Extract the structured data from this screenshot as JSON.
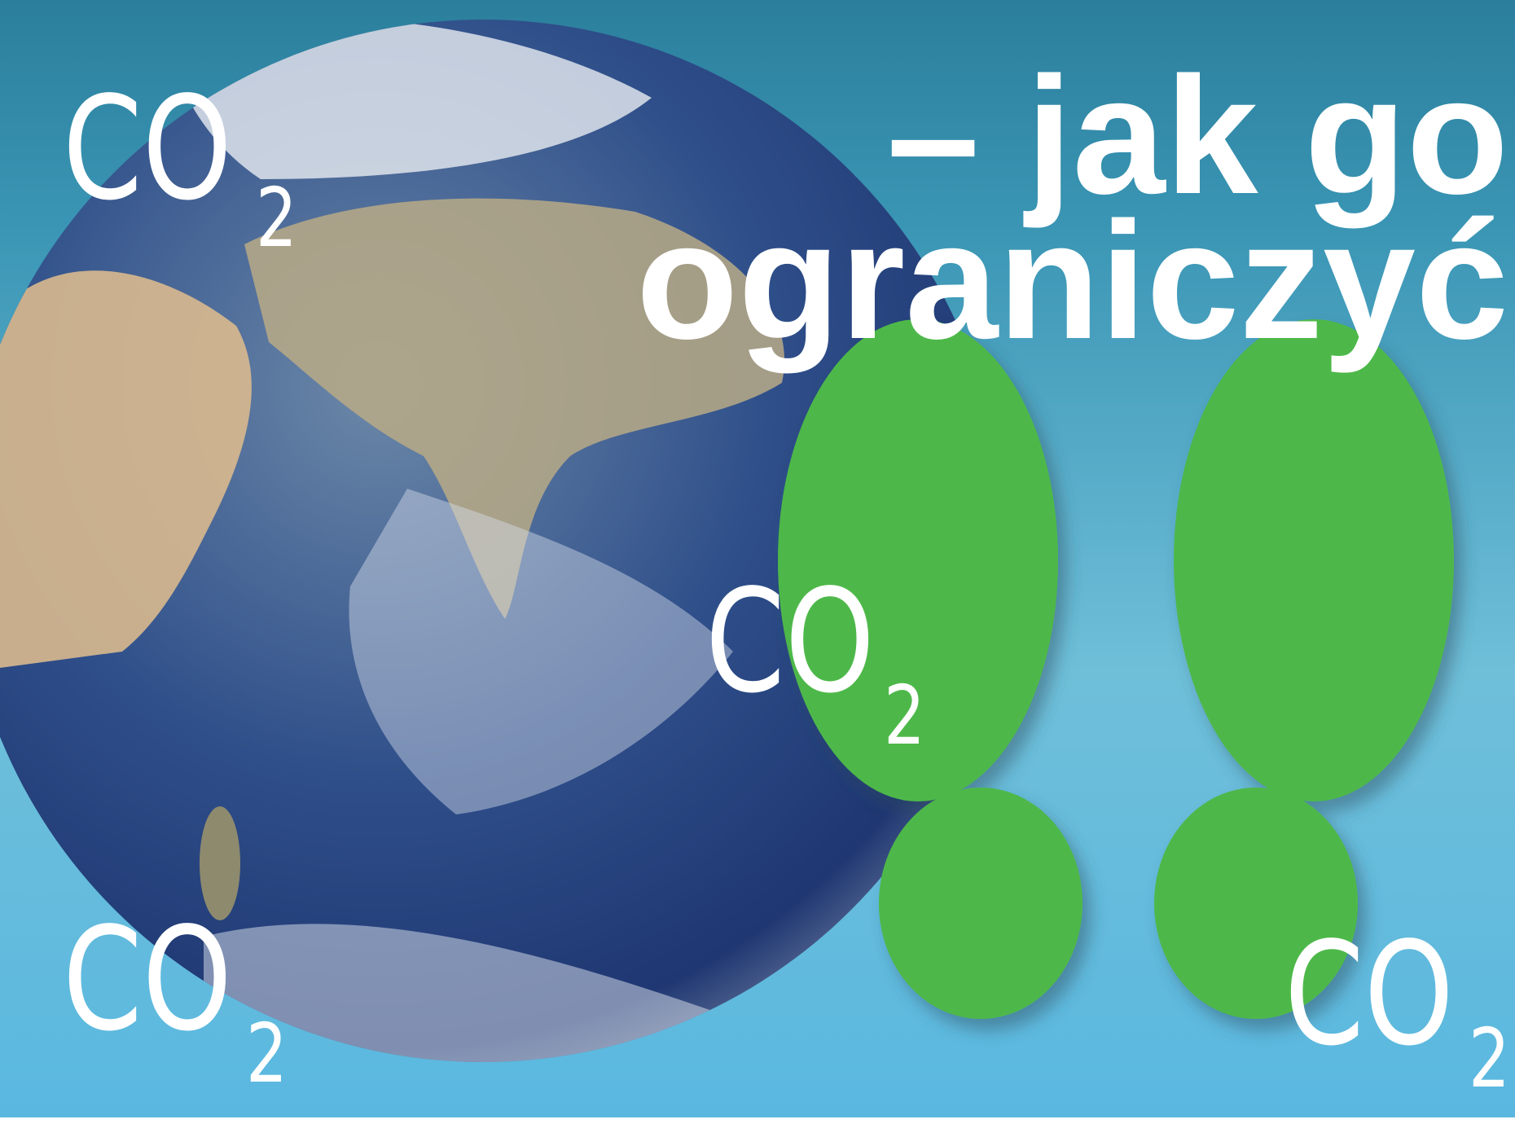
{
  "title": {
    "lines": [
      "– jak go",
      "ograniczyć"
    ]
  },
  "labels": [
    {
      "main": "CO",
      "sub": "2"
    },
    {
      "main": "CO",
      "sub": "2"
    },
    {
      "main": "CO",
      "sub": "2"
    },
    {
      "main": "CO",
      "sub": "2"
    }
  ]
}
